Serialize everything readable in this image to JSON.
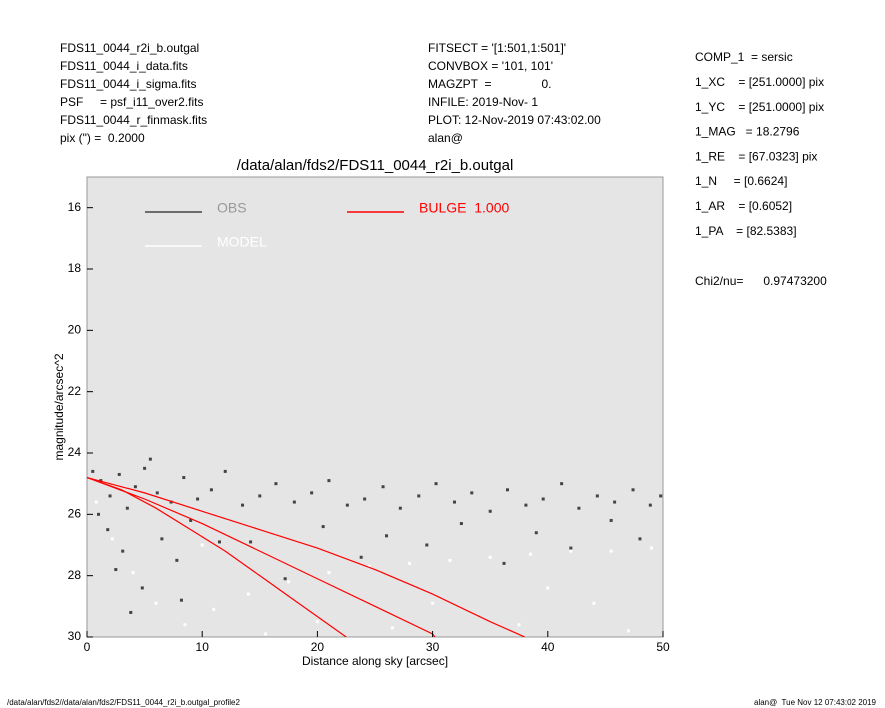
{
  "header": {
    "left": [
      "FDS11_0044_r2i_b.outgal",
      "FDS11_0044_i_data.fits",
      "FDS11_0044_i_sigma.fits",
      "PSF     = psf_i11_over2.fits",
      "FDS11_0044_r_finmask.fits",
      "pix (\") =  0.2000"
    ],
    "middle": [
      "FITSECT = '[1:501,1:501]'",
      "CONVBOX = '101, 101'",
      "MAGZPT  =               0.",
      "INFILE: 2019-Nov- 1",
      "PLOT: 12-Nov-2019 07:43:02.00",
      "alan@"
    ],
    "right": [
      "COMP_1  = sersic",
      "1_XC    = [251.0000] pix",
      "1_YC    = [251.0000] pix",
      "1_MAG   = 18.2796",
      "1_RE    = [67.0323] pix",
      "1_N     = [0.6624]",
      "1_AR    = [0.6052]",
      "1_PA    = [82.5383]"
    ],
    "chi": "Chi2/nu=      0.97473200"
  },
  "footer": {
    "left": "/data/alan/fds2//data/alan/fds2/FDS11_0044_r2i_b.outgal_profile2",
    "right": "alan@  Tue Nov 12 07:43:02 2019"
  },
  "chart_data": {
    "type": "scatter",
    "title": "/data/alan/fds2/FDS11_0044_r2i_b.outgal",
    "xlabel": "Distance along sky [arcsec]",
    "ylabel": "magnitude/arcsec^2",
    "xlim": [
      0,
      50
    ],
    "ylim": [
      15,
      30
    ],
    "y_inverted": true,
    "xticks": [
      0,
      10,
      20,
      30,
      40,
      50
    ],
    "yticks": [
      16,
      18,
      20,
      22,
      24,
      26,
      28,
      30
    ],
    "background": "#e5e5e5",
    "series": [
      {
        "name": "OBS",
        "color": "#444444",
        "mode": "points",
        "x": [
          0.5,
          1.2,
          2.0,
          2.8,
          3.5,
          4.2,
          5.0,
          6.1,
          7.3,
          8.4,
          9.6,
          10.8,
          12.0,
          13.5,
          15.0,
          16.4,
          18.0,
          19.5,
          21.0,
          22.6,
          24.1,
          25.7,
          27.2,
          28.8,
          30.3,
          31.9,
          33.4,
          35.0,
          36.5,
          38.1,
          39.6,
          41.2,
          42.7,
          44.3,
          45.8,
          47.4,
          48.9,
          49.8,
          1.8,
          3.1,
          6.5,
          9.0,
          14.2,
          20.5,
          26.0,
          32.5,
          39.0,
          45.5,
          2.5,
          4.8,
          7.8,
          11.5,
          17.2,
          23.8,
          29.5,
          36.2,
          42.0,
          48.0,
          3.8,
          8.2,
          1.0,
          5.5
        ],
        "values": [
          24.6,
          24.9,
          25.4,
          24.7,
          25.8,
          25.1,
          24.5,
          25.3,
          25.6,
          24.8,
          25.5,
          25.2,
          24.6,
          25.7,
          25.4,
          25.0,
          25.6,
          25.3,
          24.9,
          25.7,
          25.5,
          25.1,
          25.8,
          25.4,
          25.0,
          25.6,
          25.3,
          25.9,
          25.2,
          25.7,
          25.5,
          25.0,
          25.8,
          25.4,
          25.6,
          25.2,
          25.7,
          25.4,
          26.5,
          27.2,
          26.8,
          26.2,
          26.9,
          26.4,
          26.7,
          26.3,
          26.6,
          26.2,
          27.8,
          28.4,
          27.5,
          26.9,
          28.1,
          27.4,
          27.0,
          27.6,
          27.1,
          26.8,
          29.2,
          28.8,
          26.0,
          24.2
        ]
      },
      {
        "name": "MODEL",
        "color": "#ffffff",
        "mode": "points",
        "x": [
          0.8,
          2.2,
          4.0,
          6.0,
          8.5,
          11.0,
          14.0,
          17.5,
          21.0,
          24.5,
          28.0,
          31.5,
          35.0,
          38.5,
          42.0,
          45.5,
          49.0,
          10.0,
          20.0,
          30.0,
          40.0,
          47.0,
          15.5,
          26.5,
          37.5,
          44.0
        ],
        "values": [
          25.6,
          26.8,
          27.9,
          28.9,
          29.6,
          29.1,
          28.6,
          28.2,
          27.9,
          27.7,
          27.6,
          27.5,
          27.4,
          27.3,
          27.2,
          27.2,
          27.1,
          27.0,
          29.5,
          28.9,
          28.4,
          29.8,
          29.9,
          29.7,
          29.6,
          28.9
        ]
      },
      {
        "name": "BULGE  1.000",
        "color": "#ff0000",
        "mode": "lines",
        "lines": [
          {
            "x": [
              0,
              5,
              10,
              15,
              20,
              25,
              30,
              35,
              38
            ],
            "values": [
              24.8,
              25.3,
              25.9,
              26.5,
              27.1,
              27.8,
              28.6,
              29.5,
              30
            ]
          },
          {
            "x": [
              0,
              5,
              10,
              15,
              20,
              25,
              30,
              30.2
            ],
            "values": [
              24.8,
              25.5,
              26.3,
              27.2,
              28.1,
              29.0,
              29.9,
              30
            ]
          },
          {
            "x": [
              0,
              3,
              6,
              9,
              12,
              15,
              18,
              21,
              22.5
            ],
            "values": [
              24.8,
              25.2,
              25.8,
              26.5,
              27.2,
              28.0,
              28.8,
              29.6,
              30
            ]
          }
        ]
      }
    ]
  }
}
